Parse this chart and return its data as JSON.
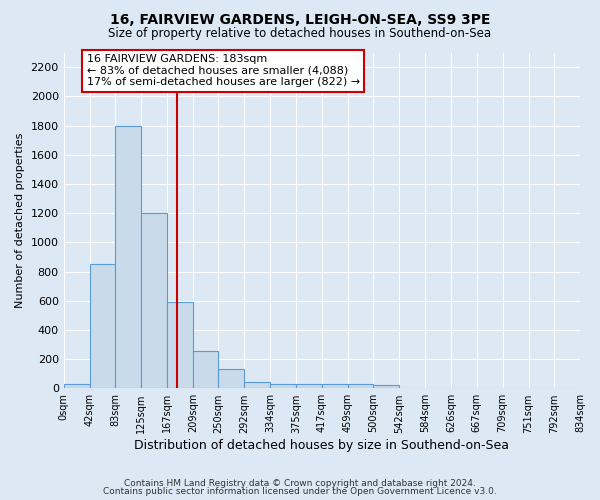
{
  "title1": "16, FAIRVIEW GARDENS, LEIGH-ON-SEA, SS9 3PE",
  "title2": "Size of property relative to detached houses in Southend-on-Sea",
  "xlabel": "Distribution of detached houses by size in Southend-on-Sea",
  "ylabel": "Number of detached properties",
  "bin_edges": [
    0,
    42,
    83,
    125,
    167,
    209,
    250,
    292,
    334,
    375,
    417,
    459,
    500,
    542,
    584,
    626,
    667,
    709,
    751,
    792,
    834
  ],
  "bar_heights": [
    30,
    850,
    1800,
    1200,
    590,
    255,
    130,
    40,
    30,
    30,
    30,
    30,
    25,
    0,
    0,
    0,
    0,
    0,
    0,
    0
  ],
  "bar_color": "#c9daea",
  "bar_edgecolor": "#5b9bd5",
  "vline_x": 183,
  "vline_color": "#cc0000",
  "annotation_line1": "16 FAIRVIEW GARDENS: 183sqm",
  "annotation_line2": "← 83% of detached houses are smaller (4,088)",
  "annotation_line3": "17% of semi-detached houses are larger (822) →",
  "annotation_box_edgecolor": "#cc0000",
  "annotation_box_facecolor": "#ffffff",
  "ylim": [
    0,
    2300
  ],
  "yticks": [
    0,
    200,
    400,
    600,
    800,
    1000,
    1200,
    1400,
    1600,
    1800,
    2000,
    2200
  ],
  "footnote1": "Contains HM Land Registry data © Crown copyright and database right 2024.",
  "footnote2": "Contains public sector information licensed under the Open Government Licence v3.0.",
  "bg_color": "#dce9f5",
  "grid_color": "#ffffff"
}
